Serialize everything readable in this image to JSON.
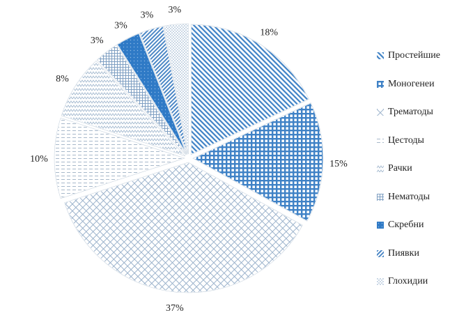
{
  "chart_data": {
    "type": "pie",
    "categories": [
      "Простейшие",
      "Моногенеи",
      "Трематоды",
      "Цестоды",
      "Рачки",
      "Нематоды",
      "Скребни",
      "Пиявки",
      "Глохидии"
    ],
    "values": [
      18,
      15,
      37,
      10,
      8,
      3,
      3,
      3,
      3
    ],
    "order_clockwise_from_top": [
      "Простейшие",
      "Моногенеи",
      "Трематоды",
      "Цестоды",
      "Рачки",
      "Нематоды",
      "Скребни",
      "Пиявки",
      "Глохидии"
    ],
    "data_labels": [
      "18%",
      "15%",
      "37%",
      "10%",
      "8%",
      "3%",
      "3%",
      "3%",
      "3%"
    ],
    "title": "",
    "legend": {
      "position": "right",
      "entries": [
        "Простейшие",
        "Моногенеи",
        "Трематоды",
        "Цестоды",
        "Рачки",
        "Нематоды",
        "Скребни",
        "Пиявки",
        "Глохидии"
      ]
    },
    "colors": {
      "primary_blue": "#3a7fc4",
      "light_blue": "#9fbfe0",
      "grey_pattern": "#b9c2cc",
      "solid_fill": "#2f7ac6"
    },
    "exploded": true
  }
}
